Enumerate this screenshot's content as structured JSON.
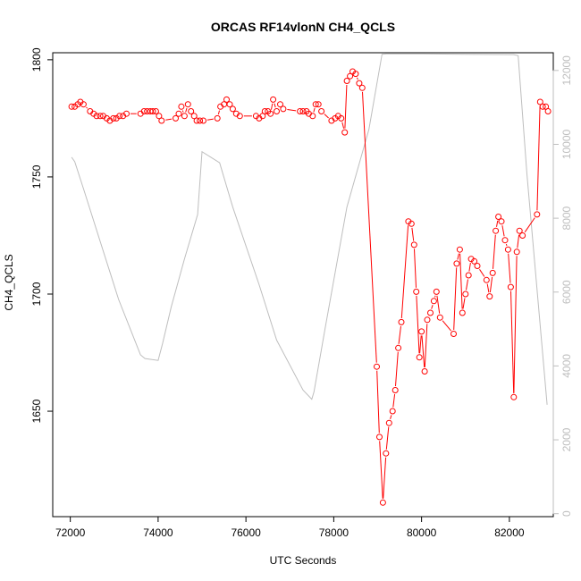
{
  "chart_data": {
    "type": "line",
    "title": "ORCAS RF14vlonN CH4_QCLS",
    "xlabel": "UTC Seconds",
    "ylabel": "CH4_QCLS",
    "xlim": [
      71600,
      83000
    ],
    "ylim": [
      1605,
      1803
    ],
    "y2lim": [
      -80,
      12480
    ],
    "x_ticks": [
      72000,
      74000,
      76000,
      78000,
      80000,
      82000
    ],
    "y_ticks": [
      1650,
      1700,
      1750,
      1800
    ],
    "y2_ticks": [
      0,
      2000,
      4000,
      6000,
      8000,
      10000,
      12000
    ],
    "colors": {
      "ch4": "#ff0000",
      "altitude": "#bebebe",
      "axis": "#000000",
      "axis2": "#bebebe"
    },
    "series": [
      {
        "axis": "left",
        "style": "points-lines",
        "x": [
          72030,
          72100,
          72170,
          72230,
          72300,
          72450,
          72530,
          72600,
          72680,
          72750,
          72830,
          72900,
          72980,
          73050,
          73120,
          73200,
          73280,
          73600,
          73680,
          73750,
          73820,
          73880,
          73950,
          74020,
          74080,
          74400,
          74470,
          74530,
          74600,
          74680,
          74750,
          74820,
          74880,
          74950,
          75030,
          75350,
          75420,
          75500,
          75560,
          75630,
          75700,
          75780,
          75860,
          76230,
          76300,
          76380,
          76430,
          76500,
          76560,
          76620,
          76700,
          76780,
          76850,
          77230,
          77300,
          77380,
          77430,
          77520,
          77590,
          77650,
          77720,
          77950,
          78030,
          78100,
          78170,
          78250,
          78300,
          78370,
          78430,
          78500,
          78580,
          78650,
          78980,
          79040,
          79120,
          79190,
          79260,
          79340,
          79400,
          79470,
          79540,
          79700,
          79770,
          79830,
          79880,
          79950,
          80000,
          80070,
          80130,
          80200,
          80280,
          80340,
          80420,
          80730,
          80800,
          80870,
          80930,
          81000,
          81070,
          81130,
          81200,
          81270,
          81480,
          81550,
          81620,
          81690,
          81750,
          81820,
          81900,
          81970,
          82030,
          82100,
          82170,
          82230,
          82300,
          82630,
          82700,
          82760,
          82830,
          82880
        ],
        "values": [
          1780,
          1780,
          1781,
          1782,
          1781,
          1778,
          1777,
          1776,
          1776,
          1776,
          1775,
          1774,
          1775,
          1775,
          1776,
          1776,
          1777,
          1777,
          1778,
          1778,
          1778,
          1778,
          1778,
          1776,
          1774,
          1775,
          1777,
          1780,
          1776,
          1781,
          1778,
          1776,
          1774,
          1774,
          1774,
          1775,
          1780,
          1781,
          1783,
          1781,
          1779,
          1777,
          1776,
          1776,
          1775,
          1776,
          1778,
          1778,
          1777,
          1783,
          1778,
          1781,
          1779,
          1778,
          1778,
          1778,
          1777,
          1776,
          1781,
          1781,
          1778,
          1774,
          1775,
          1776,
          1775,
          1769,
          1791,
          1793,
          1795,
          1794,
          1790,
          1788,
          1669,
          1639,
          1611,
          1632,
          1645,
          1650,
          1659,
          1677,
          1688,
          1731,
          1730,
          1721,
          1701,
          1673,
          1684,
          1667,
          1689,
          1692,
          1697,
          1701,
          1690,
          1683,
          1713,
          1719,
          1692,
          1700,
          1708,
          1715,
          1714,
          1712,
          1706,
          1699,
          1709,
          1727,
          1733,
          1731,
          1723,
          1719,
          1703,
          1656,
          1718,
          1727,
          1725,
          1734,
          1782,
          1780,
          1780,
          1778
        ]
      },
      {
        "axis": "right",
        "style": "line",
        "x": [
          72030,
          72100,
          72300,
          72700,
          73100,
          73600,
          73700,
          74000,
          74100,
          74300,
          74600,
          74900,
          75000,
          75400,
          75700,
          76300,
          76700,
          77300,
          77500,
          77550,
          77800,
          78300,
          78800,
          79100,
          79200,
          80000,
          81000,
          82100,
          82200,
          82400,
          82860
        ],
        "values": [
          9650,
          9530,
          8800,
          7300,
          5800,
          4300,
          4200,
          4150,
          4600,
          5600,
          6900,
          8100,
          9800,
          9500,
          8300,
          6200,
          4700,
          3350,
          3100,
          3300,
          5000,
          8300,
          10400,
          12440,
          12450,
          12450,
          12440,
          12430,
          12400,
          9200,
          2950
        ]
      }
    ]
  }
}
